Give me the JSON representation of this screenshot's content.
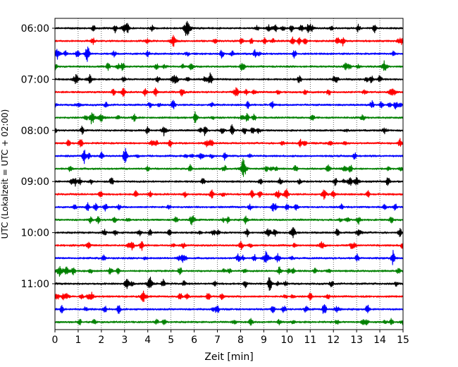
{
  "chart_data": {
    "type": "line",
    "title": "",
    "xlabel": "Zeit  [min]",
    "ylabel": "UTC (Lokalzeit = UTC + 02:00)",
    "xlim": [
      0,
      15
    ],
    "x_ticks": [
      0,
      1,
      2,
      3,
      4,
      5,
      6,
      7,
      8,
      9,
      10,
      11,
      12,
      13,
      14,
      15
    ],
    "y_tick_labels": [
      "06:00",
      "07:00",
      "08:00",
      "09:00",
      "10:00",
      "11:00"
    ],
    "grid": "vertical-dotted",
    "trace_colors": [
      "#000000",
      "#ff0000",
      "#0000ff",
      "#008000"
    ],
    "traces_per_hour": 4,
    "trace_interval_min": 15,
    "start_time": "06:00",
    "trace_count": 24,
    "events": [
      {
        "trace": 0,
        "x": 5.7,
        "amp": 1.0
      },
      {
        "trace": 0,
        "x": 3.0,
        "amp": 0.35
      },
      {
        "trace": 0,
        "x": 9.2,
        "amp": 0.25
      },
      {
        "trace": 0,
        "x": 10.9,
        "amp": 0.2
      },
      {
        "trace": 1,
        "x": 5.1,
        "amp": 0.45
      },
      {
        "trace": 2,
        "x": 0.1,
        "amp": 0.35
      },
      {
        "trace": 3,
        "x": 14.2,
        "amp": 0.4
      },
      {
        "trace": 4,
        "x": 0.9,
        "amp": 0.4
      },
      {
        "trace": 4,
        "x": 1.5,
        "amp": 0.35
      },
      {
        "trace": 5,
        "x": 7.8,
        "amp": 0.3
      },
      {
        "trace": 5,
        "x": 14.5,
        "amp": 0.3
      },
      {
        "trace": 6,
        "x": 1.0,
        "amp": 0.2
      },
      {
        "trace": 7,
        "x": 2.0,
        "amp": 0.35
      },
      {
        "trace": 8,
        "x": 4.7,
        "amp": 0.35
      },
      {
        "trace": 8,
        "x": 14.2,
        "amp": 0.2
      },
      {
        "trace": 10,
        "x": 6.3,
        "amp": 0.25
      },
      {
        "trace": 11,
        "x": 8.1,
        "amp": 0.6
      },
      {
        "trace": 11,
        "x": 12.5,
        "amp": 0.25
      },
      {
        "trace": 12,
        "x": 13.0,
        "amp": 0.3
      },
      {
        "trace": 13,
        "x": 11.6,
        "amp": 0.35
      },
      {
        "trace": 16,
        "x": 9.2,
        "amp": 0.35
      },
      {
        "trace": 16,
        "x": 13.1,
        "amp": 0.3
      },
      {
        "trace": 17,
        "x": 11.5,
        "amp": 0.3
      },
      {
        "trace": 18,
        "x": 9.1,
        "amp": 0.55
      },
      {
        "trace": 19,
        "x": 0.2,
        "amp": 0.6
      },
      {
        "trace": 19,
        "x": 0.5,
        "amp": 0.35
      },
      {
        "trace": 20,
        "x": 4.1,
        "amp": 0.55
      },
      {
        "trace": 21,
        "x": 3.8,
        "amp": 0.5
      },
      {
        "trace": 21,
        "x": 0.5,
        "amp": 0.25
      }
    ]
  }
}
